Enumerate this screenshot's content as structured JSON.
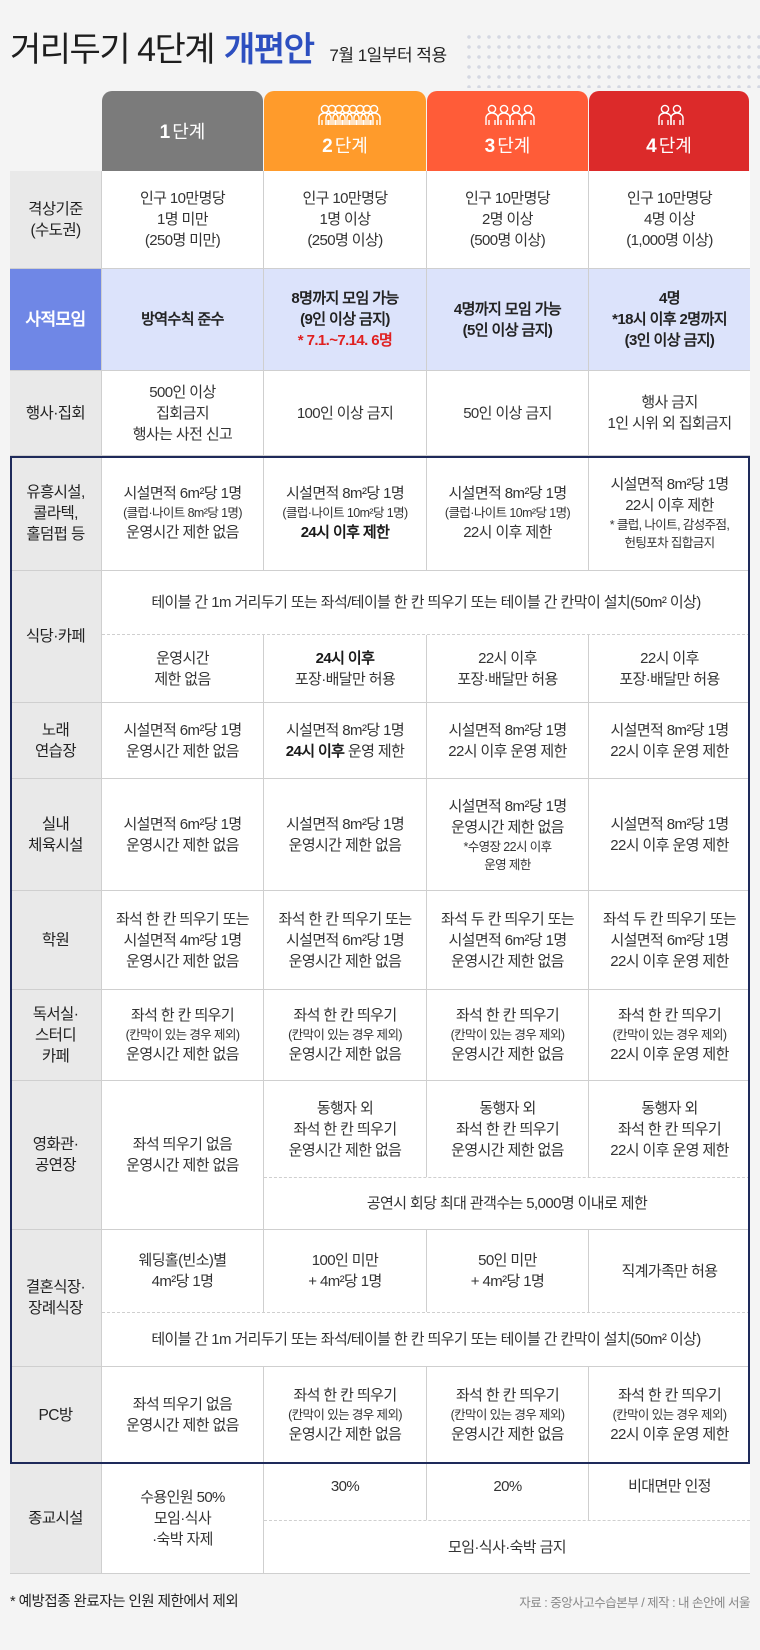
{
  "title": {
    "main": "거리두기 4단계",
    "accent": "개편안",
    "sub": "7월 1일부터 적용"
  },
  "colors": {
    "stage1": "#7b7b7b",
    "stage2": "#ff9b2b",
    "stage3": "#ff5c38",
    "stage4": "#dc2a2a",
    "accent": "#2d4fc0",
    "highlight_label": "#6f87e6",
    "highlight_row": "#dce3fb",
    "box_border": "#1e2a5a"
  },
  "stages": [
    {
      "num": "1",
      "label": "단계",
      "people_icons": 0
    },
    {
      "num": "2",
      "label": "단계",
      "people_icons": 8
    },
    {
      "num": "3",
      "label": "단계",
      "people_icons": 4
    },
    {
      "num": "4",
      "label": "단계",
      "people_icons": 2
    }
  ],
  "rows": [
    {
      "label": [
        "격상기준",
        "(수도권)"
      ],
      "cells": [
        {
          "lines": [
            "인구 10만명당",
            "1명 미만",
            "(250명 미만)"
          ]
        },
        {
          "lines": [
            "인구 10만명당",
            "1명 이상",
            "(250명 이상)"
          ]
        },
        {
          "lines": [
            "인구 10만명당",
            "2명 이상",
            "(500명 이상)"
          ]
        },
        {
          "lines": [
            "인구 10만명당",
            "4명 이상",
            "(1,000명 이상)"
          ]
        }
      ]
    },
    {
      "label": [
        "사적모임"
      ],
      "highlight": true,
      "cells": [
        {
          "lines": [
            "방역수칙 준수"
          ]
        },
        {
          "lines": [
            "8명까지 모임 가능",
            "(9인 이상 금지)",
            {
              "text": "* 7.1.~7.14. 6명",
              "style": "red"
            }
          ]
        },
        {
          "lines": [
            "4명까지 모임 가능",
            "(5인 이상 금지)"
          ]
        },
        {
          "lines": [
            "4명",
            "*18시 이후 2명까지",
            "(3인 이상 금지)"
          ]
        }
      ]
    },
    {
      "label": [
        "행사·집회"
      ],
      "cells": [
        {
          "lines": [
            "500인 이상",
            "집회금지",
            "행사는 사전 신고"
          ]
        },
        {
          "lines": [
            "100인 이상 금지"
          ]
        },
        {
          "lines": [
            "50인 이상 금지"
          ]
        },
        {
          "lines": [
            "행사 금지",
            "1인 시위 외 집회금지"
          ]
        }
      ]
    },
    {
      "label": [
        "유흥시설,",
        "콜라텍,",
        "홀덤펍 등"
      ],
      "cells": [
        {
          "lines": [
            "시설면적 6m²당 1명",
            {
              "text": "(클럽·나이트 8m²당 1명)",
              "style": "small"
            },
            "운영시간 제한 없음"
          ]
        },
        {
          "lines": [
            "시설면적 8m²당 1명",
            {
              "text": "(클럽·나이트 10m²당 1명)",
              "style": "small"
            },
            {
              "text": "24시 이후 제한",
              "style": "bold"
            }
          ]
        },
        {
          "lines": [
            "시설면적 8m²당 1명",
            {
              "text": "(클럽·나이트 10m²당 1명)",
              "style": "small"
            },
            "22시 이후 제한"
          ]
        },
        {
          "lines": [
            "시설면적 8m²당 1명",
            "22시 이후 제한",
            {
              "text": "* 클럽, 나이트, 감성주점,",
              "style": "small"
            },
            {
              "text": "헌팅포차 집합금지",
              "style": "small"
            }
          ]
        }
      ]
    },
    {
      "label": [
        "식당·카페"
      ],
      "note": "테이블 간 1m 거리두기 또는 좌석/테이블 한 칸 띄우기 또는 테이블 간 칸막이 설치(50m² 이상)",
      "cells": [
        {
          "lines": [
            "운영시간",
            "제한 없음"
          ]
        },
        {
          "lines": [
            {
              "text": "24시 이후",
              "style": "bold"
            },
            "포장·배달만 허용"
          ]
        },
        {
          "lines": [
            "22시 이후",
            "포장·배달만 허용"
          ]
        },
        {
          "lines": [
            "22시 이후",
            "포장·배달만 허용"
          ]
        }
      ]
    },
    {
      "label": [
        "노래",
        "연습장"
      ],
      "cells": [
        {
          "lines": [
            "시설면적 6m²당 1명",
            "운영시간 제한 없음"
          ]
        },
        {
          "lines": [
            "시설면적 8m²당 1명",
            {
              "bold": "24시 이후",
              "rest": " 운영 제한"
            }
          ]
        },
        {
          "lines": [
            "시설면적 8m²당 1명",
            "22시 이후 운영 제한"
          ]
        },
        {
          "lines": [
            "시설면적 8m²당 1명",
            "22시 이후 운영 제한"
          ]
        }
      ]
    },
    {
      "label": [
        "실내",
        "체육시설"
      ],
      "cells": [
        {
          "lines": [
            "시설면적 6m²당 1명",
            "운영시간 제한 없음"
          ]
        },
        {
          "lines": [
            "시설면적 8m²당 1명",
            "운영시간 제한 없음"
          ]
        },
        {
          "lines": [
            "시설면적 8m²당 1명",
            "운영시간 제한 없음",
            {
              "text": "*수영장 22시 이후",
              "style": "small"
            },
            {
              "text": "운영 제한",
              "style": "small"
            }
          ]
        },
        {
          "lines": [
            "시설면적 8m²당 1명",
            "22시 이후 운영 제한"
          ]
        }
      ]
    },
    {
      "label": [
        "학원"
      ],
      "cells": [
        {
          "lines": [
            "좌석 한 칸 띄우기 또는",
            "시설면적 4m²당 1명",
            "운영시간 제한 없음"
          ]
        },
        {
          "lines": [
            "좌석 한 칸 띄우기 또는",
            "시설면적 6m²당 1명",
            "운영시간 제한 없음"
          ]
        },
        {
          "lines": [
            "좌석 두 칸 띄우기 또는",
            "시설면적 6m²당 1명",
            "운영시간 제한 없음"
          ]
        },
        {
          "lines": [
            "좌석 두 칸 띄우기 또는",
            "시설면적 6m²당 1명",
            "22시 이후 운영 제한"
          ]
        }
      ]
    },
    {
      "label": [
        "독서실·",
        "스터디",
        "카페"
      ],
      "cells": [
        {
          "lines": [
            "좌석 한 칸 띄우기",
            {
              "text": "(칸막이 있는 경우 제외)",
              "style": "small"
            },
            "운영시간 제한 없음"
          ]
        },
        {
          "lines": [
            "좌석 한 칸 띄우기",
            {
              "text": "(칸막이 있는 경우 제외)",
              "style": "small"
            },
            "운영시간 제한 없음"
          ]
        },
        {
          "lines": [
            "좌석 한 칸 띄우기",
            {
              "text": "(칸막이 있는 경우 제외)",
              "style": "small"
            },
            "운영시간 제한 없음"
          ]
        },
        {
          "lines": [
            "좌석 한 칸 띄우기",
            {
              "text": "(칸막이 있는 경우 제외)",
              "style": "small"
            },
            "22시 이후 운영 제한"
          ]
        }
      ]
    },
    {
      "label": [
        "영화관·",
        "공연장"
      ],
      "note": "공연시 회당 최대 관객수는 5,000명 이내로 제한",
      "cells": [
        {
          "lines": [
            "좌석 띄우기 없음",
            "운영시간 제한 없음"
          ]
        },
        {
          "lines": [
            "동행자 외",
            "좌석 한 칸 띄우기",
            "운영시간 제한 없음"
          ]
        },
        {
          "lines": [
            "동행자 외",
            "좌석 한 칸 띄우기",
            "운영시간 제한 없음"
          ]
        },
        {
          "lines": [
            "동행자 외",
            "좌석 한 칸 띄우기",
            "22시 이후 운영 제한"
          ]
        }
      ]
    },
    {
      "label": [
        "결혼식장·",
        "장례식장"
      ],
      "note": "테이블 간 1m 거리두기 또는 좌석/테이블 한 칸 띄우기 또는 테이블 간 칸막이 설치(50m² 이상)",
      "cells": [
        {
          "lines": [
            "웨딩홀(빈소)별",
            "4m²당 1명"
          ]
        },
        {
          "lines": [
            "100인 미만",
            "+ 4m²당 1명"
          ]
        },
        {
          "lines": [
            "50인 미만",
            "+ 4m²당 1명"
          ]
        },
        {
          "lines": [
            "직계가족만 허용"
          ]
        }
      ]
    },
    {
      "label": [
        "PC방"
      ],
      "cells": [
        {
          "lines": [
            "좌석 띄우기 없음",
            "운영시간 제한 없음"
          ]
        },
        {
          "lines": [
            "좌석 한 칸 띄우기",
            {
              "text": "(칸막이 있는 경우 제외)",
              "style": "small"
            },
            "운영시간 제한 없음"
          ]
        },
        {
          "lines": [
            "좌석 한 칸 띄우기",
            {
              "text": "(칸막이 있는 경우 제외)",
              "style": "small"
            },
            "운영시간 제한 없음"
          ]
        },
        {
          "lines": [
            "좌석 한 칸 띄우기",
            {
              "text": "(칸막이 있는 경우 제외)",
              "style": "small"
            },
            "22시 이후 운영 제한"
          ]
        }
      ]
    },
    {
      "label": [
        "종교시설"
      ],
      "note": "모임·식사·숙박 금지",
      "cells": [
        {
          "lines": [
            "수용인원 50%",
            "모임·식사",
            "·숙박 자제"
          ]
        },
        {
          "lines": [
            "30%"
          ]
        },
        {
          "lines": [
            "20%"
          ]
        },
        {
          "lines": [
            "비대면만 인정"
          ]
        }
      ]
    }
  ],
  "footer": {
    "note": "* 예방접종 완료자는 인원 제한에서 제외",
    "source": "자료 : 중앙사고수습본부 / 제작 : 내 손안에 서울"
  }
}
